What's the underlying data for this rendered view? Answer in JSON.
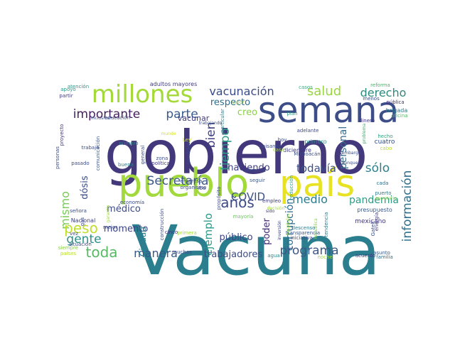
{
  "words": [
    {
      "text": "Vacuna",
      "color": "#2a7e8e"
    },
    {
      "text": "gobierno",
      "color": "#44387c"
    },
    {
      "text": "semana",
      "color": "#3c4d88"
    },
    {
      "text": "pueblo",
      "color": "#a2d93c"
    },
    {
      "text": "país",
      "color": "#e7e222"
    },
    {
      "text": "millones",
      "color": "#a3d939"
    },
    {
      "text": "importante",
      "color": "#451d5f"
    },
    {
      "text": "vacunación",
      "color": "#3b4b87"
    },
    {
      "text": "salud",
      "color": "#9bd53f"
    },
    {
      "text": "derecho",
      "color": "#2d8a7e"
    },
    {
      "text": "parte",
      "color": "#3a5b8c"
    },
    {
      "text": "tiempo",
      "color": "#2c9c87"
    },
    {
      "text": "bien",
      "color": "#3f3d80"
    },
    {
      "text": "respecto",
      "color": "#306e8d"
    },
    {
      "text": "creo",
      "color": "#8bd048"
    },
    {
      "text": "Secretaría",
      "color": "#3b5a8a"
    },
    {
      "text": "haciendo",
      "color": "#3e3e82"
    },
    {
      "text": "todavía",
      "color": "#3b4f88"
    },
    {
      "text": "sólo",
      "color": "#2e7f8d"
    },
    {
      "text": "información",
      "color": "#2d718e"
    },
    {
      "text": "personal",
      "color": "#376b8c"
    },
    {
      "text": "medio",
      "color": "#2e7b8d"
    },
    {
      "text": "pandemia",
      "color": "#2d9c83"
    },
    {
      "text": "mismo",
      "color": "#7ac95a"
    },
    {
      "text": "peso",
      "color": "#c2df2a"
    },
    {
      "text": "gente",
      "color": "#2c8f8a"
    },
    {
      "text": "dósis",
      "color": "#3a4d87"
    },
    {
      "text": "toda",
      "color": "#56ba64"
    },
    {
      "text": "momento",
      "color": "#3c4488"
    },
    {
      "text": "manera",
      "color": "#39588c"
    },
    {
      "text": "ejemplo",
      "color": "#2c9a88"
    },
    {
      "text": "años",
      "color": "#3c4a88"
    },
    {
      "text": "COVID",
      "color": "#3a5288"
    },
    {
      "text": "poder",
      "color": "#432c74"
    },
    {
      "text": "corrupción",
      "color": "#2c6c8e"
    },
    {
      "text": "programa",
      "color": "#3d5789"
    },
    {
      "text": "trabajadores",
      "color": "#3b4c89"
    },
    {
      "text": "público",
      "color": "#3d4388"
    },
    {
      "text": "médico",
      "color": "#3c4b88"
    },
    {
      "text": "vacunar",
      "color": "#3e3b80"
    },
    {
      "text": "Ciudad",
      "color": "#2c7d8e"
    },
    {
      "text": "cuatro",
      "color": "#2c4e8a"
    },
    {
      "text": "Nacional",
      "color": "#3b3f82"
    },
    {
      "text": "mexicano",
      "color": "#3e3580"
    },
    {
      "text": "adultos mayores",
      "color": "#3f3a80"
    },
    {
      "text": "reforma",
      "color": "#4cb068"
    },
    {
      "text": "atención",
      "color": "#2a968a"
    },
    {
      "text": "pública",
      "color": "#3e2f78"
    },
    {
      "text": "brigada",
      "color": "#2a7d8e"
    },
    {
      "text": "dinero",
      "color": "#3e3382"
    },
    {
      "text": "mundo",
      "color": "#d2e21a"
    },
    {
      "text": "hecho",
      "color": "#27a581"
    },
    {
      "text": "cabo",
      "color": "#b7dd2b"
    },
    {
      "text": "primero",
      "color": "#2c8a8a"
    },
    {
      "text": "casos",
      "color": "#2db07f"
    },
    {
      "text": "adelante",
      "color": "#3d4a87"
    },
    {
      "text": "diciembre",
      "color": "#3b3a80"
    },
    {
      "text": "persona",
      "color": "#3b4c88"
    },
    {
      "text": "empleo",
      "color": "#3d3a80"
    },
    {
      "text": "trabajo",
      "color": "#3b4c88"
    },
    {
      "text": "apoyo",
      "color": "#2c9d88"
    },
    {
      "text": "partir",
      "color": "#3b3a80"
    },
    {
      "text": "menos",
      "color": "#3b4c88"
    },
    {
      "text": "oficina",
      "color": "#56ba64"
    },
    {
      "text": "problema",
      "color": "#46ae70"
    },
    {
      "text": "cada",
      "color": "#2c6e8e"
    },
    {
      "text": "puerto",
      "color": "#2a7e8e"
    },
    {
      "text": "presupuesto",
      "color": "#3b5a8a"
    },
    {
      "text": "energía",
      "color": "#3c3a80"
    },
    {
      "text": "asunto",
      "color": "#3b5a8a"
    },
    {
      "text": "familia",
      "color": "#2d708e"
    },
    {
      "text": "acuerdo",
      "color": "#3e3580"
    },
    {
      "text": "tendencia",
      "color": "#2c7d8e"
    },
    {
      "text": "República",
      "color": "#8bd048"
    },
    {
      "text": "transparencia",
      "color": "#39568c"
    },
    {
      "text": "iniciativa",
      "color": "#3c4488"
    },
    {
      "text": "hospitales",
      "color": "#a2d93c"
    },
    {
      "text": "reducción",
      "color": "#2c9c86"
    },
    {
      "text": "Michoacán",
      "color": "#3b4c88"
    },
    {
      "text": "descenso",
      "color": "#2d7f8e"
    },
    {
      "text": "agua",
      "color": "#2c8a8a"
    },
    {
      "text": "inversión",
      "color": "#3c4488"
    },
    {
      "text": "sido",
      "color": "#3b3a80"
    },
    {
      "text": "seguir",
      "color": "#3b5a8a"
    },
    {
      "text": "mayoría",
      "color": "#6cc35a"
    },
    {
      "text": "cinco",
      "color": "#3e3580"
    },
    {
      "text": "muchas",
      "color": "#3b4c88"
    },
    {
      "text": "siempre",
      "color": "#8bd048"
    },
    {
      "text": "países",
      "color": "#b7dd2b"
    },
    {
      "text": "situación",
      "color": "#3b4c88"
    },
    {
      "text": "pasado",
      "color": "#3b4c88"
    },
    {
      "text": "personas",
      "color": "#3b4c88"
    },
    {
      "text": "proyecto",
      "color": "#3e3580"
    },
    {
      "text": "inclusive",
      "color": "#3b4c88"
    },
    {
      "text": "educación",
      "color": "#3b4c88"
    },
    {
      "text": "comunicación",
      "color": "#3b5a8a"
    },
    {
      "text": "número",
      "color": "#2c7d8e"
    },
    {
      "text": "buena",
      "color": "#2c7d8e"
    },
    {
      "text": "política",
      "color": "#3e3580"
    },
    {
      "text": "general",
      "color": "#3b4c88"
    },
    {
      "text": "zona",
      "color": "#3b4c88"
    },
    {
      "text": "economía",
      "color": "#3b4c88"
    },
    {
      "text": "empresa",
      "color": "#3b4c88"
    },
    {
      "text": "organismo",
      "color": "#3b4c88"
    },
    {
      "text": "construcción",
      "color": "#3b4c88"
    },
    {
      "text": "propósito",
      "color": "#3b4c88"
    },
    {
      "text": "candidato",
      "color": "#3b4c88"
    },
    {
      "text": "particular",
      "color": "#2c7d8e"
    },
    {
      "text": "vigor",
      "color": "#a2d93c"
    },
    {
      "text": "plan",
      "color": "#2c9c86"
    },
    {
      "text": "hoy",
      "color": "#3b4c88"
    },
    {
      "text": "aunque",
      "color": "#3b4c88"
    },
    {
      "text": "secretario",
      "color": "#a2d93c"
    },
    {
      "text": "mejor",
      "color": "#3b4c88"
    },
    {
      "text": "garantía",
      "color": "#a2d93c"
    },
    {
      "text": "señora",
      "color": "#3b4c88"
    },
    {
      "text": "vez",
      "color": "#3b4c88"
    },
    {
      "text": "gas",
      "color": "#3b4c88"
    },
    {
      "text": "Ley",
      "color": "#d2e21a"
    },
    {
      "text": "iba",
      "color": "#3b4c88"
    },
    {
      "text": "casa",
      "color": "#a2d93c"
    },
    {
      "text": "primera",
      "color": "#a2d93c"
    },
    {
      "text": "paisanos",
      "color": "#3b4c88"
    },
    {
      "text": "embargo",
      "color": "#3b4c88"
    },
    {
      "text": "Gatell",
      "color": "#3b4c88"
    },
    {
      "text": "noche",
      "color": "#a2d93c"
    },
    {
      "text": "trabajando",
      "color": "#3b4c88"
    },
    {
      "text": "decisión",
      "color": "#a2d93c"
    }
  ]
}
